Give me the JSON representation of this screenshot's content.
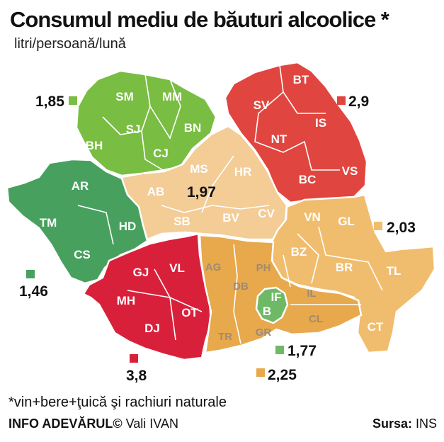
{
  "title": "Consumul mediu de  băuturi alcoolice *",
  "subtitle": "litri/persoană/lună",
  "regions": [
    {
      "id": "nw",
      "value": "1,85",
      "color": "#79bd43",
      "counties": [
        "SM",
        "MM",
        "SJ",
        "BN",
        "BH",
        "CJ"
      ]
    },
    {
      "id": "ne",
      "value": "2,9",
      "color": "#e0463f",
      "counties": [
        "BT",
        "SV",
        "IS",
        "NT",
        "BC",
        "VS"
      ]
    },
    {
      "id": "center",
      "value": "1,97",
      "color": "#f3cc96",
      "counties": [
        "AB",
        "MS",
        "HR",
        "SB",
        "BV",
        "CV"
      ]
    },
    {
      "id": "west",
      "value": "1,46",
      "color": "#47a05e",
      "counties": [
        "AR",
        "TM",
        "HD",
        "CS"
      ]
    },
    {
      "id": "se",
      "value": "2,03",
      "color": "#f0bd6e",
      "counties": [
        "VN",
        "GL",
        "BZ",
        "BR",
        "TL",
        "CT"
      ]
    },
    {
      "id": "sw",
      "value": "3,8",
      "color": "#d9203a",
      "counties": [
        "GJ",
        "VL",
        "MH",
        "DJ",
        "OT"
      ]
    },
    {
      "id": "south",
      "value": "2,25",
      "color": "#e8a94c",
      "counties": [
        "AG",
        "PH",
        "DB",
        "IL",
        "CL",
        "TR",
        "GR"
      ]
    },
    {
      "id": "bucharest",
      "value": "1,77",
      "color": "#6fb866",
      "counties": [
        "IF",
        "B"
      ]
    }
  ],
  "footnote": "*vin+bere+ţuică şi rachiuri naturale",
  "credit_brand": "INFO ADEVĂRUL©",
  "credit_author": "Vali IVAN",
  "source_label": "Sursa:",
  "source_value": "INS"
}
